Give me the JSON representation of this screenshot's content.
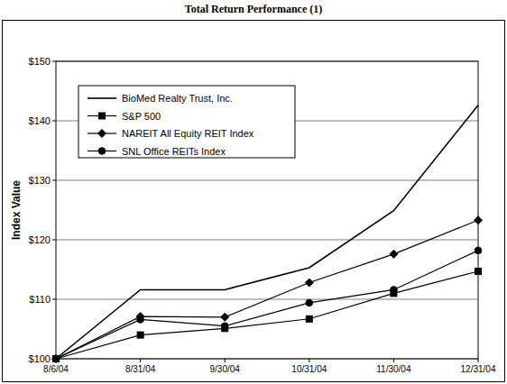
{
  "chart_data": {
    "type": "line",
    "title": "Total Return Performance (1)",
    "y_label": "Index Value",
    "categories": [
      "8/6/04",
      "8/31/04",
      "9/30/04",
      "10/31/04",
      "11/30/04",
      "12/31/04"
    ],
    "series": [
      {
        "name": "BioMed Realty Trust, Inc.",
        "color": "#000000",
        "marker": "none",
        "values": [
          100,
          111.6,
          111.6,
          115.3,
          124.9,
          142.6
        ]
      },
      {
        "name": "S&P 500",
        "color": "#000000",
        "marker": "square",
        "values": [
          100,
          104.0,
          105.1,
          106.7,
          111.0,
          114.7
        ]
      },
      {
        "name": "NAREIT All Equity REIT Index",
        "color": "#000000",
        "marker": "diamond",
        "values": [
          100,
          107.1,
          107.0,
          112.8,
          117.6,
          123.3
        ]
      },
      {
        "name": "SNL Office REITs Index",
        "color": "#000000",
        "marker": "circle",
        "values": [
          100,
          106.6,
          105.5,
          109.4,
          111.6,
          118.2
        ]
      }
    ],
    "ylim": [
      100,
      150
    ],
    "yticks": [
      {
        "value": 100,
        "label": "$100"
      },
      {
        "value": 110,
        "label": "$110"
      },
      {
        "value": 120,
        "label": "$120"
      },
      {
        "value": 130,
        "label": "$130"
      },
      {
        "value": 140,
        "label": "$140"
      },
      {
        "value": 150,
        "label": "$150"
      }
    ],
    "grid": true,
    "legend": "top-left"
  }
}
